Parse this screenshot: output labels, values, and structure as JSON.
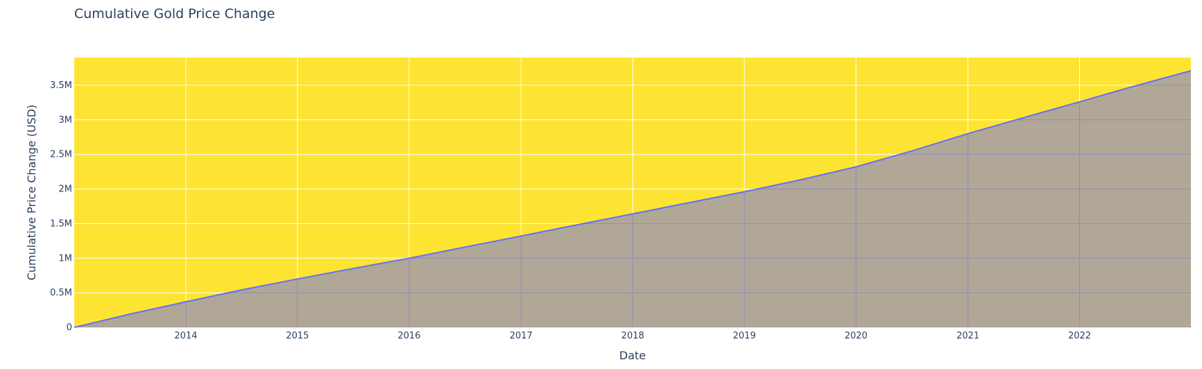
{
  "chart_data": {
    "type": "area",
    "title": "Cumulative Gold Price Change",
    "xlabel": "Date",
    "ylabel": "Cumulative Price Change (USD)",
    "xlim": [
      "2013-01-01",
      "2022-12-31"
    ],
    "ylim": [
      0,
      3900000
    ],
    "x_ticks": [
      {
        "value": "2014-01-01",
        "label": "2014"
      },
      {
        "value": "2015-01-01",
        "label": "2015"
      },
      {
        "value": "2016-01-01",
        "label": "2016"
      },
      {
        "value": "2017-01-01",
        "label": "2017"
      },
      {
        "value": "2018-01-01",
        "label": "2018"
      },
      {
        "value": "2019-01-01",
        "label": "2019"
      },
      {
        "value": "2020-01-01",
        "label": "2020"
      },
      {
        "value": "2021-01-01",
        "label": "2021"
      },
      {
        "value": "2022-01-01",
        "label": "2022"
      }
    ],
    "y_ticks": [
      {
        "value": 0,
        "label": "0"
      },
      {
        "value": 500000,
        "label": "0.5M"
      },
      {
        "value": 1000000,
        "label": "1M"
      },
      {
        "value": 1500000,
        "label": "1.5M"
      },
      {
        "value": 2000000,
        "label": "2M"
      },
      {
        "value": 2500000,
        "label": "2.5M"
      },
      {
        "value": 3000000,
        "label": "3M"
      },
      {
        "value": 3500000,
        "label": "3.5M"
      }
    ],
    "grid": true,
    "legend": "none",
    "colors": {
      "plot_background": "#fde432",
      "area_fill": "#b0a797",
      "line": "#636efa",
      "text": "#2a3f5f"
    },
    "series": [
      {
        "x": [
          "2013-01-01",
          "2013-07-01",
          "2014-01-01",
          "2014-07-01",
          "2015-01-01",
          "2015-07-01",
          "2016-01-01",
          "2016-07-01",
          "2017-01-01",
          "2017-07-01",
          "2018-01-01",
          "2018-07-01",
          "2019-01-01",
          "2019-07-01",
          "2020-01-01",
          "2020-07-01",
          "2021-01-01",
          "2021-07-01",
          "2022-01-01",
          "2022-07-01",
          "2022-12-31"
        ],
        "y": [
          0,
          190000,
          370000,
          540000,
          700000,
          850000,
          1000000,
          1160000,
          1320000,
          1480000,
          1640000,
          1800000,
          1960000,
          2130000,
          2320000,
          2550000,
          2800000,
          3030000,
          3260000,
          3490000,
          3710000
        ]
      }
    ]
  }
}
